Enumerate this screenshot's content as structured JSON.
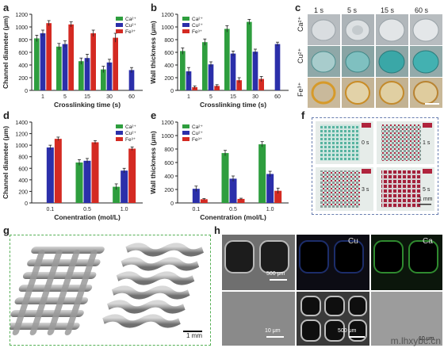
{
  "panels": {
    "a": "a",
    "b": "b",
    "c": "c",
    "d": "d",
    "e": "e",
    "f": "f",
    "g": "g",
    "h": "h"
  },
  "colors": {
    "ca": "#2e9e3e",
    "cu": "#2b2faa",
    "fe": "#d42a22"
  },
  "chart_data": [
    {
      "panel": "a",
      "type": "bar",
      "xlabel": "Crosslinking time (s)",
      "ylabel": "Channel diameter (μm)",
      "ylim": [
        0,
        1200
      ],
      "yticks": [
        "0",
        "200",
        "400",
        "600",
        "800",
        "1000",
        "1200"
      ],
      "categories": [
        "1",
        "5",
        "15",
        "30",
        "60"
      ],
      "legend": [
        "Ca²⁺",
        "Cu²⁺",
        "Fe³⁺"
      ],
      "legend_position": "top-right",
      "series": [
        {
          "name": "Ca²⁺",
          "values": [
            820,
            690,
            460,
            330,
            null
          ],
          "errors": [
            50,
            50,
            50,
            50,
            null
          ]
        },
        {
          "name": "Cu²⁺",
          "values": [
            900,
            730,
            510,
            440,
            320
          ],
          "errors": [
            50,
            50,
            60,
            50,
            40
          ]
        },
        {
          "name": "Fe³⁺",
          "values": [
            1060,
            1040,
            900,
            830,
            null
          ],
          "errors": [
            40,
            40,
            50,
            70,
            null
          ]
        }
      ]
    },
    {
      "panel": "b",
      "type": "bar",
      "xlabel": "Crosslinking time (s)",
      "ylabel": "Wall thickness (μm)",
      "ylim": [
        0,
        1200
      ],
      "yticks": [
        "0",
        "200",
        "400",
        "600",
        "800",
        "1000",
        "1200"
      ],
      "categories": [
        "1",
        "5",
        "15",
        "30",
        "60"
      ],
      "legend": [
        "Ca²⁺",
        "Cu²⁺",
        "Fe³⁺"
      ],
      "legend_position": "top-left",
      "series": [
        {
          "name": "Ca²⁺",
          "values": [
            620,
            760,
            970,
            1080,
            null
          ],
          "errors": [
            50,
            50,
            50,
            40,
            null
          ]
        },
        {
          "name": "Cu²⁺",
          "values": [
            300,
            410,
            580,
            610,
            730
          ],
          "errors": [
            60,
            40,
            40,
            40,
            30
          ]
        },
        {
          "name": "Fe³⁺",
          "values": [
            50,
            70,
            160,
            180,
            null
          ],
          "errors": [
            20,
            20,
            40,
            40,
            null
          ]
        }
      ]
    },
    {
      "panel": "d",
      "type": "bar",
      "xlabel": "Conentration (mol/L)",
      "ylabel": "Channel diameter (μm)",
      "ylim": [
        0,
        1400
      ],
      "yticks": [
        "0",
        "200",
        "400",
        "600",
        "800",
        "1000",
        "1200",
        "1400"
      ],
      "categories": [
        "0.1",
        "0.5",
        "1.0"
      ],
      "legend": [
        "Ca²⁺",
        "Cu²⁺",
        "Fe³⁺"
      ],
      "legend_position": "top-right",
      "series": [
        {
          "name": "Ca²⁺",
          "values": [
            null,
            700,
            280
          ],
          "errors": [
            null,
            50,
            50
          ]
        },
        {
          "name": "Cu²⁺",
          "values": [
            960,
            730,
            560
          ],
          "errors": [
            40,
            40,
            40
          ]
        },
        {
          "name": "Fe³⁺",
          "values": [
            1110,
            1050,
            940
          ],
          "errors": [
            30,
            30,
            30
          ]
        }
      ]
    },
    {
      "panel": "e",
      "type": "bar",
      "xlabel": "Conentration (mol/L)",
      "ylabel": "Wall thickness (μm)",
      "ylim": [
        0,
        1200
      ],
      "yticks": [
        "0",
        "200",
        "400",
        "600",
        "800",
        "1000",
        "1200"
      ],
      "categories": [
        "0.1",
        "0.5",
        "1.0"
      ],
      "legend": [
        "Ca²⁺",
        "Cu²⁺",
        "Fe³⁺"
      ],
      "legend_position": "top-left",
      "series": [
        {
          "name": "Ca²⁺",
          "values": [
            null,
            740,
            870
          ],
          "errors": [
            null,
            40,
            40
          ]
        },
        {
          "name": "Cu²⁺",
          "values": [
            210,
            360,
            430
          ],
          "errors": [
            40,
            40,
            40
          ]
        },
        {
          "name": "Fe³⁺",
          "values": [
            55,
            60,
            180
          ],
          "errors": [
            10,
            10,
            40
          ]
        }
      ]
    }
  ],
  "photo_c": {
    "times": [
      "1 s",
      "5 s",
      "15 s",
      "60 s"
    ],
    "rows": [
      "Ca²⁺",
      "Cu²⁺",
      "Fe³⁺"
    ]
  },
  "photo_f": {
    "labels": [
      "0 s",
      "1 s",
      "3 s",
      "5 s"
    ],
    "scale": "1 mm"
  },
  "photo_g": {
    "scale": "1 mm"
  },
  "photo_h": {
    "labels": [
      "Cu",
      "Ca"
    ],
    "scales": [
      "500 μm",
      "10 μm",
      "500 μm",
      "10 μm"
    ]
  },
  "watermark": "m.lhxybc.cn"
}
